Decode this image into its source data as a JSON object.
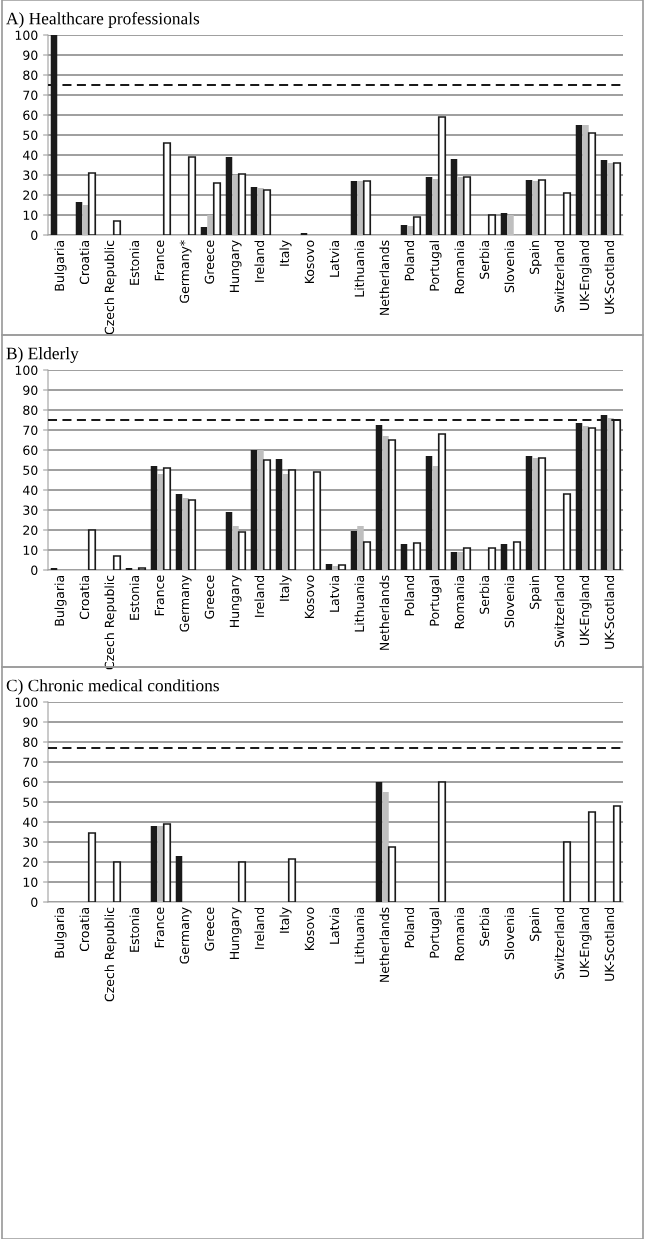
{
  "chart_data": [
    {
      "type": "bar",
      "title": "A) Healthcare professionals",
      "categories": [
        "Bulgaria",
        "Croatia",
        "Czech Republic",
        "Estonia",
        "France",
        "Germany*",
        "Greece",
        "Hungary",
        "Ireland",
        "Italy",
        "Kosovo",
        "Latvia",
        "Lithuania",
        "Netherlands",
        "Poland",
        "Portugal",
        "Romania",
        "Serbia",
        "Slovenia",
        "Spain",
        "Switzerland",
        "UK-England",
        "UK-Scotland"
      ],
      "series": [
        {
          "color": "#1a1a1a",
          "values": [
            100,
            16.5,
            null,
            null,
            null,
            null,
            4,
            39,
            24,
            null,
            1,
            null,
            27,
            null,
            5,
            29,
            38,
            null,
            11,
            27.5,
            null,
            55,
            37.5
          ]
        },
        {
          "color": "#bfbfbf",
          "values": [
            null,
            15,
            null,
            null,
            null,
            null,
            10,
            30,
            23.5,
            null,
            null,
            null,
            27,
            null,
            4.5,
            28,
            29,
            null,
            10,
            27,
            null,
            55,
            36
          ]
        },
        {
          "color": "#ffffff",
          "values": [
            null,
            31,
            7,
            null,
            46,
            39,
            26,
            30.5,
            22.5,
            null,
            null,
            null,
            27,
            null,
            9,
            59,
            29,
            10,
            null,
            27.5,
            21,
            51,
            36
          ]
        }
      ],
      "ylim": [
        0,
        100
      ],
      "yticks": [
        0,
        10,
        20,
        30,
        40,
        50,
        60,
        70,
        80,
        90,
        100
      ],
      "grid": "y",
      "legend": false,
      "ref_lines": [
        {
          "axis": "y",
          "value": 75,
          "color": "#1a1a1a",
          "line_style": "dashed"
        }
      ]
    },
    {
      "type": "bar",
      "title": "B) Elderly",
      "categories": [
        "Bulgaria",
        "Croatia",
        "Czech Republic",
        "Estonia",
        "France",
        "Germany",
        "Greece",
        "Hungary",
        "Ireland",
        "Italy",
        "Kosovo",
        "Latvia",
        "Lithuania",
        "Netherlands",
        "Poland",
        "Portugal",
        "Romania",
        "Serbia",
        "Slovenia",
        "Spain",
        "Switzerland",
        "UK-England",
        "UK-Scotland"
      ],
      "series": [
        {
          "color": "#1a1a1a",
          "values": [
            1,
            null,
            null,
            1,
            52,
            38,
            null,
            29,
            60,
            55.5,
            null,
            3,
            19.5,
            72.5,
            13,
            57,
            9,
            null,
            13,
            57,
            null,
            73.5,
            77.5
          ]
        },
        {
          "color": "#bfbfbf",
          "values": [
            null,
            null,
            null,
            null,
            48,
            36,
            null,
            22,
            60,
            48,
            null,
            2,
            22,
            67,
            null,
            52,
            9,
            null,
            null,
            56,
            null,
            72,
            76
          ]
        },
        {
          "color": "#ffffff",
          "values": [
            null,
            20,
            7,
            1,
            51,
            35,
            null,
            19,
            55,
            50,
            49,
            2.5,
            14,
            65,
            13.5,
            68,
            11,
            11,
            14,
            56,
            38,
            71,
            75
          ]
        }
      ],
      "ylim": [
        0,
        100
      ],
      "yticks": [
        0,
        10,
        20,
        30,
        40,
        50,
        60,
        70,
        80,
        90,
        100
      ],
      "grid": "y",
      "legend": false,
      "ref_lines": [
        {
          "axis": "y",
          "value": 75,
          "color": "#1a1a1a",
          "line_style": "dashed"
        }
      ]
    },
    {
      "type": "bar",
      "title": "C) Chronic medical conditions",
      "categories": [
        "Bulgaria",
        "Croatia",
        "Czech Republic",
        "Estonia",
        "France",
        "Germany",
        "Greece",
        "Hungary",
        "Ireland",
        "Italy",
        "Kosovo",
        "Latvia",
        "Lithuania",
        "Netherlands",
        "Poland",
        "Portugal",
        "Romania",
        "Serbia",
        "Slovenia",
        "Spain",
        "Switzerland",
        "UK-England",
        "UK-Scotland"
      ],
      "series": [
        {
          "color": "#1a1a1a",
          "values": [
            null,
            null,
            null,
            null,
            38,
            23,
            null,
            null,
            null,
            null,
            null,
            null,
            null,
            60,
            null,
            null,
            null,
            null,
            null,
            null,
            null,
            null,
            null
          ]
        },
        {
          "color": "#bfbfbf",
          "values": [
            null,
            null,
            null,
            null,
            38,
            null,
            null,
            null,
            null,
            null,
            null,
            null,
            null,
            55,
            null,
            null,
            null,
            null,
            null,
            null,
            null,
            null,
            null
          ]
        },
        {
          "color": "#ffffff",
          "values": [
            null,
            34.5,
            20,
            null,
            39,
            null,
            null,
            20,
            null,
            21.5,
            null,
            null,
            null,
            27.5,
            null,
            60,
            null,
            null,
            null,
            null,
            30,
            45,
            48
          ]
        }
      ],
      "ylim": [
        0,
        100
      ],
      "yticks": [
        0,
        10,
        20,
        30,
        40,
        50,
        60,
        70,
        80,
        90,
        100
      ],
      "grid": "y",
      "legend": false,
      "ref_lines": [
        {
          "axis": "y",
          "value": 77,
          "color": "#1a1a1a",
          "line_style": "dashed"
        }
      ]
    }
  ]
}
